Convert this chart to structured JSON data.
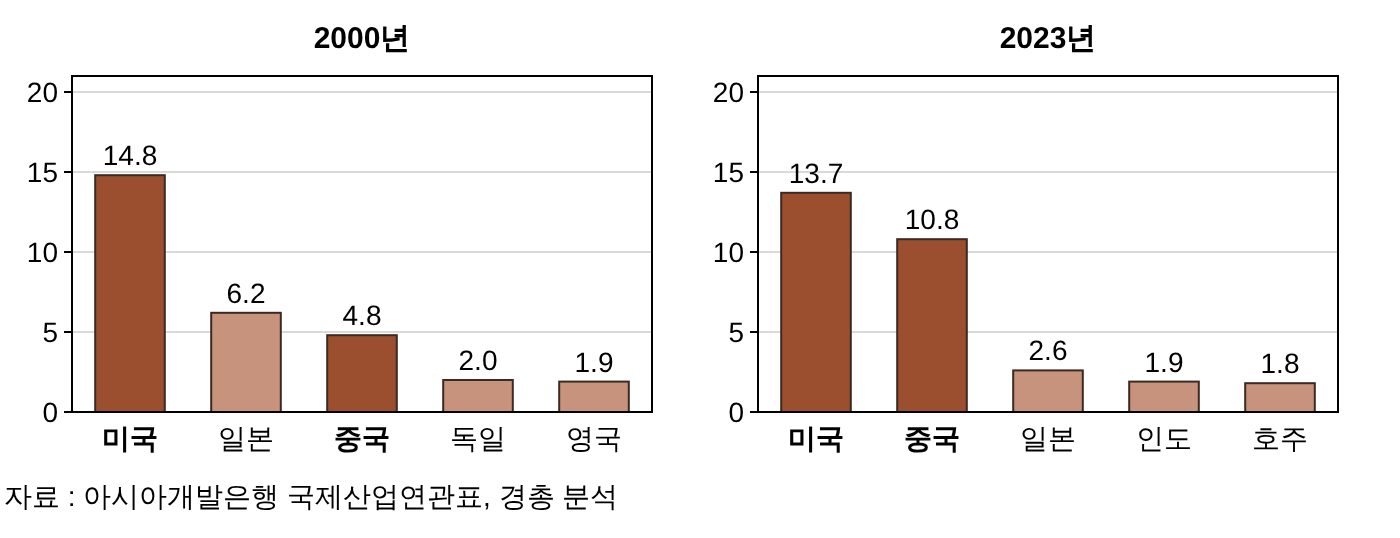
{
  "chart_data": [
    {
      "type": "bar",
      "title": "2000년",
      "categories": [
        "미국",
        "일본",
        "중국",
        "독일",
        "영국"
      ],
      "values": [
        14.8,
        6.2,
        4.8,
        2.0,
        1.9
      ],
      "value_labels": [
        "14.8",
        "6.2",
        "4.8",
        "2.0",
        "1.9"
      ],
      "colors": [
        "#9c4f2e",
        "#c8937c",
        "#9c4f2e",
        "#c8937c",
        "#c8937c"
      ],
      "ylim": [
        0,
        21
      ],
      "yticks": [
        0,
        5,
        10,
        15,
        20
      ],
      "grid": "y",
      "annotations": [
        "자료 : 아시아개발은행 국제산업연관표, 경총 분석"
      ]
    },
    {
      "type": "bar",
      "title": "2023년",
      "categories": [
        "미국",
        "중국",
        "일본",
        "인도",
        "호주"
      ],
      "values": [
        13.7,
        10.8,
        2.6,
        1.9,
        1.8
      ],
      "value_labels": [
        "13.7",
        "10.8",
        "2.6",
        "1.9",
        "1.8"
      ],
      "colors": [
        "#9c4f2e",
        "#9c4f2e",
        "#c8937c",
        "#c8937c",
        "#c8937c"
      ],
      "ylim": [
        0,
        21
      ],
      "yticks": [
        0,
        5,
        10,
        15,
        20
      ],
      "grid": "y"
    }
  ]
}
